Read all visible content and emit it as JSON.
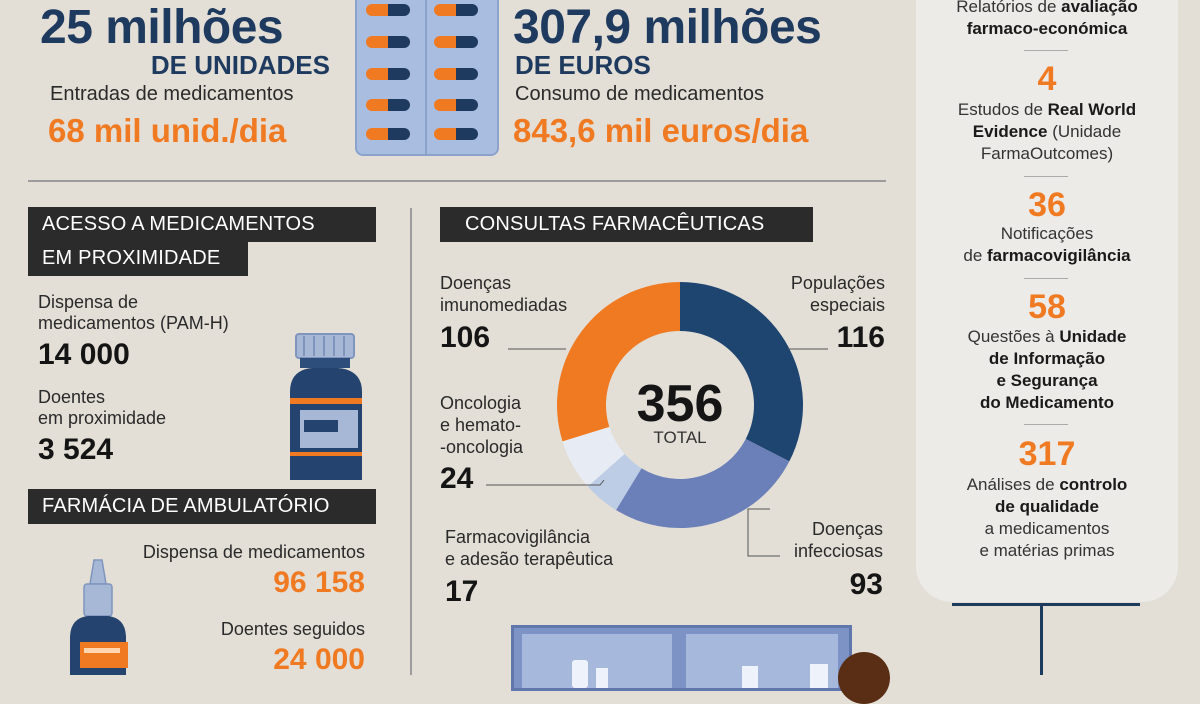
{
  "top_left": {
    "big": "25 milhões",
    "unit": "DE UNIDADES",
    "label": "Entradas de medicamentos",
    "rate": "68 mil unid./dia"
  },
  "top_right": {
    "big": "307,9 milhões",
    "unit": "DE EUROS",
    "label": "Consumo de medicamentos",
    "rate": "843,6 mil euros/dia"
  },
  "acesso": {
    "header_line1": "ACESSO A MEDICAMENTOS",
    "header_line2": "EM PROXIMIDADE",
    "item1_line1": "Dispensa de",
    "item1_line2": "medicamentos (PAM-H)",
    "item1_value": "14 000",
    "item2_line1": "Doentes",
    "item2_line2": "em proximidade",
    "item2_value": "3 524"
  },
  "ambulatorio": {
    "header": "FARMÁCIA DE AMBULATÓRIO",
    "item1_label": "Dispensa de medicamentos",
    "item1_value": "96 158",
    "item2_label": "Doentes seguidos",
    "item2_value": "24 000"
  },
  "consultas": {
    "header": "CONSULTAS FARMACÊUTICAS",
    "total": "356",
    "total_label": "TOTAL",
    "labels": {
      "imuno_1": "Doenças",
      "imuno_2": "imunomediadas",
      "popul_1": "Populações",
      "popul_2": "especiais",
      "onco_1": "Oncologia",
      "onco_2": "e hemato-",
      "onco_3": "-oncologia",
      "farma_1": "Farmacovigilância",
      "farma_2": "e adesão terapêutica",
      "infec_1": "Doenças",
      "infec_2": "infecciosas"
    },
    "values": {
      "imuno": "106",
      "popul": "116",
      "onco": "24",
      "farma": "17",
      "infec": "93"
    }
  },
  "chart_data": {
    "type": "pie",
    "categories": [
      "Populações especiais",
      "Doenças infecciosas",
      "Farmacovigilância e adesão terapêutica",
      "Oncologia e hemato-oncologia",
      "Doenças imunomediadas"
    ],
    "values": [
      116,
      93,
      17,
      24,
      106
    ],
    "colors": [
      "#1e4470",
      "#6b80b8",
      "#bccde5",
      "#e7ecf4",
      "#f07a22"
    ]
  },
  "panel": {
    "r1_l1": "Relatórios de",
    "r1_b1": "avaliação",
    "r1_l2": "farmaco-económica",
    "n2": "4",
    "r2_l1": "Estudos de",
    "r2_b1": "Real World",
    "r2_b2": "Evidence",
    "r2_l2": "(Unidade",
    "r2_l3": "FarmaOutcomes)",
    "n3": "36",
    "r3_l1": "Notificações",
    "r3_l2": "de",
    "r3_b2": "farmacovigilância",
    "n4": "58",
    "r4_l1": "Questões à",
    "r4_b1": "Unidade",
    "r4_b2": "de Informação",
    "r4_b3": "e Segurança",
    "r4_b4": "do Medicamento",
    "n5": "317",
    "r5_l1": "Análises de",
    "r5_b1": "controlo",
    "r5_b2": "de qualidade",
    "r5_l3": "a medicamentos",
    "r5_l4": "e matérias primas"
  },
  "colors": {
    "navy": "#1f3a5f",
    "orange": "#f07a22",
    "background": "#e3dfd7",
    "header_bg": "#2b2b2b"
  }
}
